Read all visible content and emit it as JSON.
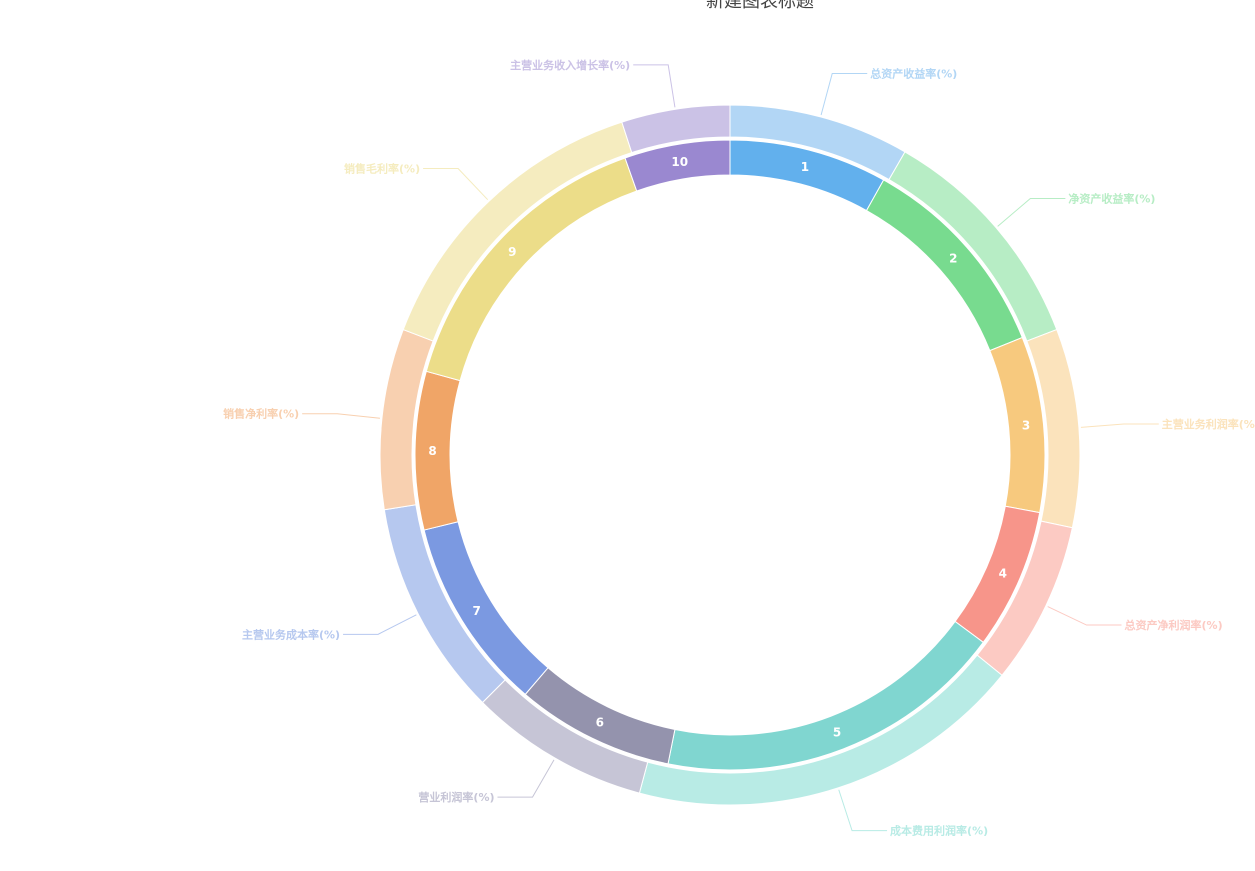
{
  "chart_data": {
    "type": "pie",
    "title": "新建图表标题",
    "categories": [
      "总资产收益率(%)",
      "净资产收益率(%)",
      "主营业务利润率(%)",
      "总资产净利润率(%)",
      "成本费用利润率(%)",
      "营业利润率(%)",
      "主营业务成本率(%)",
      "销售净利率(%)",
      "销售毛利率(%)",
      "主营业务收入增长率(%)"
    ],
    "series": [
      {
        "values": [
          10,
          13,
          11,
          9,
          22,
          10,
          12,
          10,
          17,
          6
        ],
        "colors": [
          "#b2d6f5",
          "#b7edc5",
          "#fbe3bc",
          "#fccac3",
          "#b8ebe5",
          "#c6c5d6",
          "#b6c8ef",
          "#f8d0b0",
          "#f5ecbf",
          "#cbc2e6"
        ]
      },
      {
        "values": [
          9,
          12,
          10,
          8,
          20,
          9,
          11,
          9,
          17,
          6
        ],
        "labels": [
          "1",
          "2",
          "3",
          "4",
          "5",
          "6",
          "7",
          "8",
          "9",
          "10"
        ],
        "colors": [
          "#62b0ed",
          "#78db8f",
          "#f7c97e",
          "#f7958a",
          "#80d6d0",
          "#9493ad",
          "#7b99e1",
          "#f0a567",
          "#ecdd89",
          "#9a88d0"
        ]
      }
    ]
  }
}
